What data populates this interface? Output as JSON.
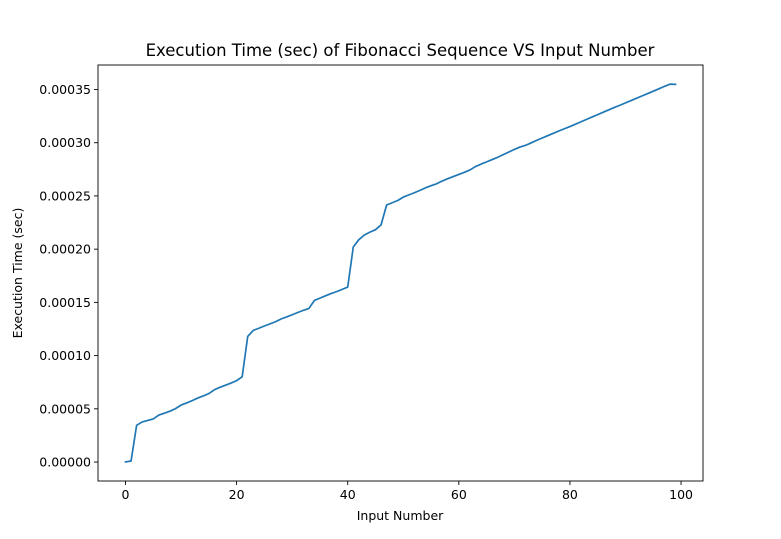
{
  "chart_data": {
    "type": "line",
    "title": "Execution Time (sec) of Fibonacci Sequence VS Input Number",
    "xlabel": "Input Number",
    "ylabel": "Execution Time (sec)",
    "xlim": [
      -4.95,
      103.95
    ],
    "ylim": [
      -1.78e-05,
      0.000373
    ],
    "xticks": [
      0,
      20,
      40,
      60,
      80,
      100
    ],
    "xtick_labels": [
      "0",
      "20",
      "40",
      "60",
      "80",
      "100"
    ],
    "yticks": [
      0,
      5e-05,
      0.0001,
      0.00015,
      0.0002,
      0.00025,
      0.0003,
      0.00035
    ],
    "ytick_labels": [
      "0.00000",
      "0.00005",
      "0.00010",
      "0.00015",
      "0.00020",
      "0.00025",
      "0.00030",
      "0.00035"
    ],
    "grid": false,
    "series": [
      {
        "color": "#1f77b4",
        "x": [
          0,
          1,
          2,
          3,
          4,
          5,
          6,
          7,
          8,
          9,
          10,
          11,
          12,
          13,
          14,
          15,
          16,
          17,
          18,
          19,
          20,
          21,
          22,
          23,
          24,
          25,
          26,
          27,
          28,
          29,
          30,
          31,
          32,
          33,
          34,
          35,
          36,
          37,
          38,
          39,
          40,
          41,
          42,
          43,
          44,
          45,
          46,
          47,
          48,
          49,
          50,
          51,
          52,
          53,
          54,
          55,
          56,
          57,
          58,
          59,
          60,
          61,
          62,
          63,
          64,
          65,
          66,
          67,
          68,
          69,
          70,
          71,
          72,
          73,
          74,
          75,
          76,
          77,
          78,
          79,
          80,
          81,
          82,
          83,
          84,
          85,
          86,
          87,
          88,
          89,
          90,
          91,
          92,
          93,
          94,
          95,
          96,
          97,
          98,
          99
        ],
        "y": [
          1e-07,
          1e-06,
          3.45e-05,
          3.77e-05,
          3.91e-05,
          4.05e-05,
          4.41e-05,
          4.59e-05,
          4.78e-05,
          5.02e-05,
          5.35e-05,
          5.55e-05,
          5.77e-05,
          6.01e-05,
          6.21e-05,
          6.43e-05,
          6.79e-05,
          7.02e-05,
          7.22e-05,
          7.42e-05,
          7.65e-05,
          8.01e-05,
          0.000118,
          0.0001237,
          0.0001257,
          0.0001278,
          0.0001298,
          0.0001318,
          0.0001344,
          0.0001363,
          0.0001384,
          0.0001405,
          0.0001425,
          0.0001442,
          0.0001518,
          0.000154,
          0.0001562,
          0.0001583,
          0.0001601,
          0.0001622,
          0.0001644,
          0.000202,
          0.0002089,
          0.0002133,
          0.000216,
          0.0002183,
          0.0002228,
          0.0002415,
          0.0002436,
          0.0002457,
          0.0002489,
          0.000251,
          0.000253,
          0.0002552,
          0.0002576,
          0.0002596,
          0.0002614,
          0.000264,
          0.0002662,
          0.0002682,
          0.0002702,
          0.0002722,
          0.0002744,
          0.0002776,
          0.0002799,
          0.000282,
          0.0002842,
          0.0002863,
          0.0002888,
          0.0002913,
          0.0002937,
          0.0002959,
          0.0002975,
          0.0002998,
          0.0003022,
          0.0003044,
          0.0003066,
          0.0003088,
          0.000311,
          0.0003131,
          0.0003152,
          0.0003174,
          0.0003197,
          0.0003219,
          0.0003242,
          0.0003264,
          0.0003287,
          0.0003309,
          0.0003331,
          0.0003352,
          0.0003374,
          0.0003396,
          0.0003418,
          0.000344,
          0.0003462,
          0.0003484,
          0.0003506,
          0.0003529,
          0.000355,
          0.0003548
        ]
      }
    ]
  }
}
